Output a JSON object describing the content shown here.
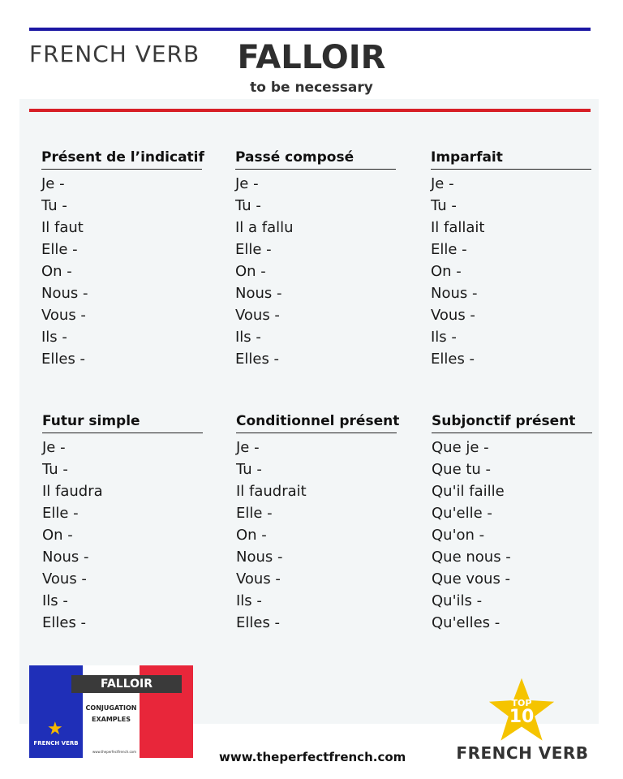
{
  "header": {
    "label": "FRENCH VERB",
    "verb": "FALLOIR",
    "translation": "to be necessary"
  },
  "tenses": [
    {
      "title": "Présent de l’indicatif",
      "rows": [
        "Je -",
        "Tu -",
        "Il faut",
        "Elle -",
        "On -",
        "Nous -",
        "Vous -",
        "Ils -",
        "Elles -"
      ]
    },
    {
      "title": "Passé composé",
      "rows": [
        "Je -",
        "Tu -",
        "Il a fallu",
        "Elle -",
        "On -",
        "Nous -",
        "Vous -",
        "Ils -",
        "Elles -"
      ]
    },
    {
      "title": "Imparfait",
      "rows": [
        "Je -",
        "Tu -",
        "Il fallait",
        "Elle -",
        "On -",
        "Nous -",
        "Vous -",
        "Ils -",
        "Elles -"
      ]
    },
    {
      "title": "Futur simple",
      "rows": [
        "Je -",
        "Tu -",
        "Il faudra",
        "Elle -",
        "On -",
        "Nous -",
        "Vous -",
        "Ils -",
        "Elles -"
      ]
    },
    {
      "title": "Conditionnel présent",
      "rows": [
        "Je -",
        "Tu -",
        "Il faudrait",
        "Elle -",
        "On -",
        "Nous -",
        "Vous -",
        "Ils -",
        "Elles -"
      ]
    },
    {
      "title": "Subjonctif présent",
      "rows": [
        "Que je -",
        "Que tu -",
        "Qu'il faille",
        "Qu'elle -",
        "Qu'on -",
        "Que nous -",
        "Que vous -",
        "Qu'ils -",
        "Qu'elles -"
      ]
    }
  ],
  "thumbnail": {
    "verb": "FALLOIR",
    "subtitle_line1": "CONJUGATION",
    "subtitle_line2": "EXAMPLES",
    "label": "FRENCH VERB",
    "url": "www.theperfectfrench.com",
    "icon": "star-icon"
  },
  "footer": {
    "url": "www.theperfectfrench.com",
    "badge_top": "TOP",
    "badge_number": "10",
    "label": "FRENCH VERB",
    "badge_icon": "star-icon"
  },
  "colors": {
    "blue": "#1c17a3",
    "red": "#d71f26",
    "panel": "#f3f6f7",
    "star": "#f5c400"
  }
}
